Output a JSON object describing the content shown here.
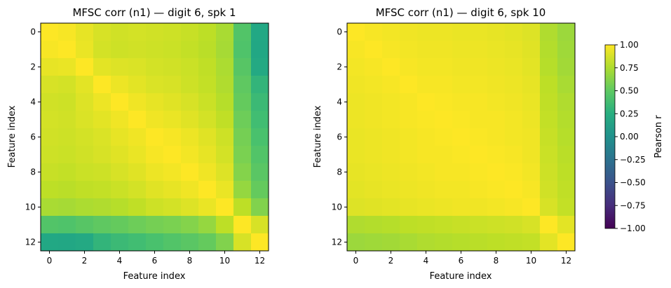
{
  "chart_data": [
    {
      "type": "heatmap",
      "title": "MFSC corr (n1) — digit 6, spk 1",
      "xlabel": "Feature index",
      "ylabel": "Feature index",
      "x_ticks": [
        "0",
        "2",
        "4",
        "6",
        "8",
        "10",
        "12"
      ],
      "y_ticks": [
        "0",
        "2",
        "4",
        "6",
        "8",
        "10",
        "12"
      ],
      "matrix": [
        [
          1.0,
          0.98,
          0.93,
          0.88,
          0.86,
          0.87,
          0.86,
          0.85,
          0.83,
          0.8,
          0.74,
          0.45,
          0.2
        ],
        [
          0.98,
          1.0,
          0.94,
          0.87,
          0.85,
          0.86,
          0.85,
          0.84,
          0.82,
          0.79,
          0.73,
          0.44,
          0.19
        ],
        [
          0.93,
          0.94,
          1.0,
          0.92,
          0.9,
          0.89,
          0.87,
          0.86,
          0.84,
          0.81,
          0.75,
          0.47,
          0.21
        ],
        [
          0.88,
          0.87,
          0.92,
          1.0,
          0.95,
          0.92,
          0.89,
          0.88,
          0.85,
          0.82,
          0.76,
          0.5,
          0.3
        ],
        [
          0.86,
          0.85,
          0.9,
          0.95,
          1.0,
          0.96,
          0.93,
          0.91,
          0.88,
          0.84,
          0.78,
          0.52,
          0.35
        ],
        [
          0.87,
          0.86,
          0.89,
          0.92,
          0.96,
          1.0,
          0.96,
          0.94,
          0.91,
          0.87,
          0.81,
          0.55,
          0.38
        ],
        [
          0.86,
          0.85,
          0.87,
          0.89,
          0.93,
          0.96,
          1.0,
          0.98,
          0.95,
          0.91,
          0.85,
          0.58,
          0.42
        ],
        [
          0.85,
          0.84,
          0.86,
          0.88,
          0.91,
          0.94,
          0.98,
          1.0,
          0.97,
          0.93,
          0.87,
          0.6,
          0.45
        ],
        [
          0.83,
          0.82,
          0.84,
          0.85,
          0.88,
          0.91,
          0.95,
          0.97,
          1.0,
          0.96,
          0.9,
          0.63,
          0.48
        ],
        [
          0.8,
          0.79,
          0.81,
          0.82,
          0.84,
          0.87,
          0.91,
          0.93,
          0.96,
          1.0,
          0.94,
          0.68,
          0.52
        ],
        [
          0.74,
          0.73,
          0.75,
          0.76,
          0.78,
          0.81,
          0.85,
          0.87,
          0.9,
          0.94,
          1.0,
          0.8,
          0.62
        ],
        [
          0.45,
          0.44,
          0.47,
          0.5,
          0.52,
          0.55,
          0.58,
          0.6,
          0.63,
          0.68,
          0.8,
          1.0,
          0.88
        ],
        [
          0.2,
          0.19,
          0.21,
          0.3,
          0.35,
          0.38,
          0.42,
          0.45,
          0.48,
          0.52,
          0.62,
          0.88,
          1.0
        ]
      ]
    },
    {
      "type": "heatmap",
      "title": "MFSC corr (n1) — digit 6, spk 10",
      "xlabel": "Feature index",
      "ylabel": "Feature index",
      "x_ticks": [
        "0",
        "2",
        "4",
        "6",
        "8",
        "10",
        "12"
      ],
      "y_ticks": [
        "0",
        "2",
        "4",
        "6",
        "8",
        "10",
        "12"
      ],
      "matrix": [
        [
          1.0,
          0.98,
          0.97,
          0.96,
          0.95,
          0.95,
          0.94,
          0.94,
          0.93,
          0.92,
          0.9,
          0.76,
          0.7
        ],
        [
          0.98,
          1.0,
          0.98,
          0.97,
          0.96,
          0.96,
          0.95,
          0.95,
          0.94,
          0.93,
          0.91,
          0.77,
          0.71
        ],
        [
          0.97,
          0.98,
          1.0,
          0.98,
          0.97,
          0.97,
          0.96,
          0.96,
          0.95,
          0.94,
          0.92,
          0.78,
          0.72
        ],
        [
          0.96,
          0.97,
          0.98,
          1.0,
          0.98,
          0.98,
          0.97,
          0.97,
          0.96,
          0.95,
          0.93,
          0.8,
          0.74
        ],
        [
          0.95,
          0.96,
          0.97,
          0.98,
          1.0,
          0.99,
          0.98,
          0.98,
          0.97,
          0.96,
          0.94,
          0.81,
          0.76
        ],
        [
          0.95,
          0.96,
          0.97,
          0.98,
          0.99,
          1.0,
          0.99,
          0.98,
          0.98,
          0.97,
          0.95,
          0.82,
          0.77
        ],
        [
          0.94,
          0.95,
          0.96,
          0.97,
          0.98,
          0.99,
          1.0,
          0.99,
          0.98,
          0.97,
          0.96,
          0.83,
          0.78
        ],
        [
          0.94,
          0.95,
          0.96,
          0.97,
          0.98,
          0.98,
          0.99,
          1.0,
          0.99,
          0.98,
          0.96,
          0.84,
          0.79
        ],
        [
          0.93,
          0.94,
          0.95,
          0.96,
          0.97,
          0.98,
          0.98,
          0.99,
          1.0,
          0.99,
          0.97,
          0.85,
          0.8
        ],
        [
          0.92,
          0.93,
          0.94,
          0.95,
          0.96,
          0.97,
          0.97,
          0.98,
          0.99,
          1.0,
          0.98,
          0.86,
          0.81
        ],
        [
          0.9,
          0.91,
          0.92,
          0.93,
          0.94,
          0.95,
          0.96,
          0.96,
          0.97,
          0.98,
          1.0,
          0.88,
          0.82
        ],
        [
          0.76,
          0.77,
          0.78,
          0.8,
          0.81,
          0.82,
          0.83,
          0.84,
          0.85,
          0.86,
          0.88,
          1.0,
          0.92
        ],
        [
          0.7,
          0.71,
          0.72,
          0.74,
          0.76,
          0.77,
          0.78,
          0.79,
          0.8,
          0.81,
          0.82,
          0.92,
          1.0
        ]
      ]
    }
  ],
  "colorbar": {
    "label": "Pearson r",
    "range": [
      -1.0,
      1.0
    ],
    "ticks": [
      "1.00",
      "0.75",
      "0.50",
      "0.25",
      "0.00",
      "−0.25",
      "−0.50",
      "−0.75",
      "−1.00"
    ],
    "tick_values": [
      1.0,
      0.75,
      0.5,
      0.25,
      0.0,
      -0.25,
      -0.5,
      -0.75,
      -1.0
    ],
    "colormap": "viridis"
  }
}
